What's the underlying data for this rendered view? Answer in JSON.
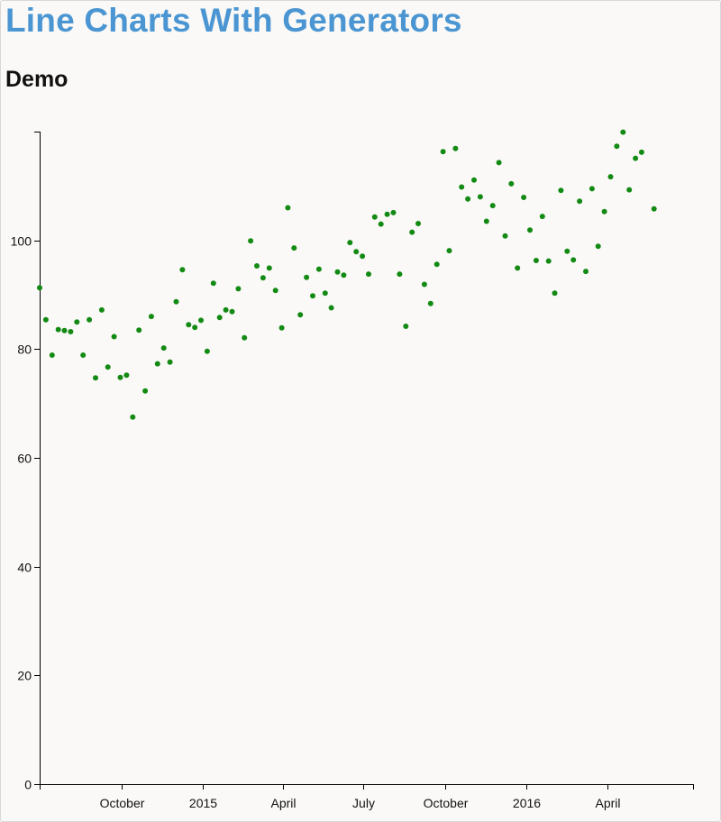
{
  "page": {
    "title": "Line Charts With Generators",
    "subtitle": "Demo"
  },
  "chart_data": {
    "type": "scatter",
    "title": "",
    "xlabel": "",
    "ylabel": "",
    "ylim": [
      0,
      120
    ],
    "xlim": [
      "2014-07-01",
      "2016-07-07"
    ],
    "grid": false,
    "legend": "none",
    "marker_color": "#138a13",
    "axis_color": "#000000",
    "y_ticks": [
      0,
      20,
      40,
      60,
      80,
      100
    ],
    "x_ticks": [
      {
        "date": "2014-10-01",
        "label": "October"
      },
      {
        "date": "2015-01-01",
        "label": "2015"
      },
      {
        "date": "2015-04-01",
        "label": "April"
      },
      {
        "date": "2015-07-01",
        "label": "July"
      },
      {
        "date": "2015-10-01",
        "label": "October"
      },
      {
        "date": "2016-01-01",
        "label": "2016"
      },
      {
        "date": "2016-04-01",
        "label": "April"
      }
    ],
    "series": [
      {
        "points": [
          [
            "2014-07-01",
            91.3
          ],
          [
            "2014-07-08",
            85.4
          ],
          [
            "2014-07-15",
            78.9
          ],
          [
            "2014-07-22",
            83.6
          ],
          [
            "2014-07-29",
            83.4
          ],
          [
            "2014-08-05",
            83.2
          ],
          [
            "2014-08-12",
            85.0
          ],
          [
            "2014-08-19",
            78.9
          ],
          [
            "2014-08-26",
            85.4
          ],
          [
            "2014-09-02",
            74.7
          ],
          [
            "2014-09-09",
            87.2
          ],
          [
            "2014-09-16",
            76.7
          ],
          [
            "2014-09-23",
            82.3
          ],
          [
            "2014-09-30",
            74.8
          ],
          [
            "2014-10-07",
            75.2
          ],
          [
            "2014-10-14",
            67.5
          ],
          [
            "2014-10-21",
            83.5
          ],
          [
            "2014-10-28",
            72.3
          ],
          [
            "2014-11-04",
            86.0
          ],
          [
            "2014-11-11",
            77.3
          ],
          [
            "2014-11-18",
            80.2
          ],
          [
            "2014-11-25",
            77.6
          ],
          [
            "2014-12-02",
            88.7
          ],
          [
            "2014-12-09",
            94.6
          ],
          [
            "2014-12-16",
            84.5
          ],
          [
            "2014-12-23",
            84.0
          ],
          [
            "2014-12-30",
            85.3
          ],
          [
            "2015-01-06",
            79.6
          ],
          [
            "2015-01-13",
            92.1
          ],
          [
            "2015-01-20",
            85.8
          ],
          [
            "2015-01-27",
            87.2
          ],
          [
            "2015-02-03",
            86.9
          ],
          [
            "2015-02-10",
            91.1
          ],
          [
            "2015-02-17",
            82.1
          ],
          [
            "2015-02-24",
            99.9
          ],
          [
            "2015-03-03",
            95.3
          ],
          [
            "2015-03-10",
            93.1
          ],
          [
            "2015-03-17",
            94.9
          ],
          [
            "2015-03-24",
            90.8
          ],
          [
            "2015-03-31",
            83.9
          ],
          [
            "2015-04-07",
            106.0
          ],
          [
            "2015-04-14",
            98.6
          ],
          [
            "2015-04-21",
            86.3
          ],
          [
            "2015-04-28",
            93.2
          ],
          [
            "2015-05-05",
            89.8
          ],
          [
            "2015-05-12",
            94.7
          ],
          [
            "2015-05-19",
            90.3
          ],
          [
            "2015-05-26",
            87.6
          ],
          [
            "2015-06-02",
            94.2
          ],
          [
            "2015-06-09",
            93.6
          ],
          [
            "2015-06-16",
            99.6
          ],
          [
            "2015-06-23",
            97.9
          ],
          [
            "2015-06-30",
            97.1
          ],
          [
            "2015-07-07",
            93.8
          ],
          [
            "2015-07-14",
            104.3
          ],
          [
            "2015-07-21",
            103.0
          ],
          [
            "2015-07-28",
            104.8
          ],
          [
            "2015-08-04",
            105.1
          ],
          [
            "2015-08-11",
            93.8
          ],
          [
            "2015-08-18",
            84.2
          ],
          [
            "2015-08-25",
            101.5
          ],
          [
            "2015-09-01",
            103.1
          ],
          [
            "2015-09-08",
            91.9
          ],
          [
            "2015-09-15",
            88.4
          ],
          [
            "2015-09-22",
            95.6
          ],
          [
            "2015-09-29",
            116.3
          ],
          [
            "2015-10-06",
            98.1
          ],
          [
            "2015-10-13",
            116.9
          ],
          [
            "2015-10-20",
            109.8
          ],
          [
            "2015-10-27",
            107.6
          ],
          [
            "2015-11-03",
            111.1
          ],
          [
            "2015-11-10",
            108.0
          ],
          [
            "2015-11-17",
            103.5
          ],
          [
            "2015-11-24",
            106.4
          ],
          [
            "2015-12-01",
            114.3
          ],
          [
            "2015-12-08",
            100.8
          ],
          [
            "2015-12-15",
            110.4
          ],
          [
            "2015-12-22",
            94.9
          ],
          [
            "2015-12-29",
            107.9
          ],
          [
            "2016-01-05",
            101.9
          ],
          [
            "2016-01-12",
            96.3
          ],
          [
            "2016-01-19",
            104.4
          ],
          [
            "2016-01-26",
            96.2
          ],
          [
            "2016-02-02",
            90.3
          ],
          [
            "2016-02-09",
            109.2
          ],
          [
            "2016-02-16",
            98.0
          ],
          [
            "2016-02-23",
            96.4
          ],
          [
            "2016-03-01",
            107.2
          ],
          [
            "2016-03-08",
            94.3
          ],
          [
            "2016-03-15",
            109.5
          ],
          [
            "2016-03-22",
            98.9
          ],
          [
            "2016-03-29",
            105.3
          ],
          [
            "2016-04-05",
            111.7
          ],
          [
            "2016-04-12",
            117.3
          ],
          [
            "2016-04-19",
            119.9
          ],
          [
            "2016-04-26",
            109.3
          ],
          [
            "2016-05-03",
            115.1
          ],
          [
            "2016-05-10",
            116.2
          ],
          [
            "2016-05-24",
            105.8
          ]
        ]
      }
    ]
  }
}
